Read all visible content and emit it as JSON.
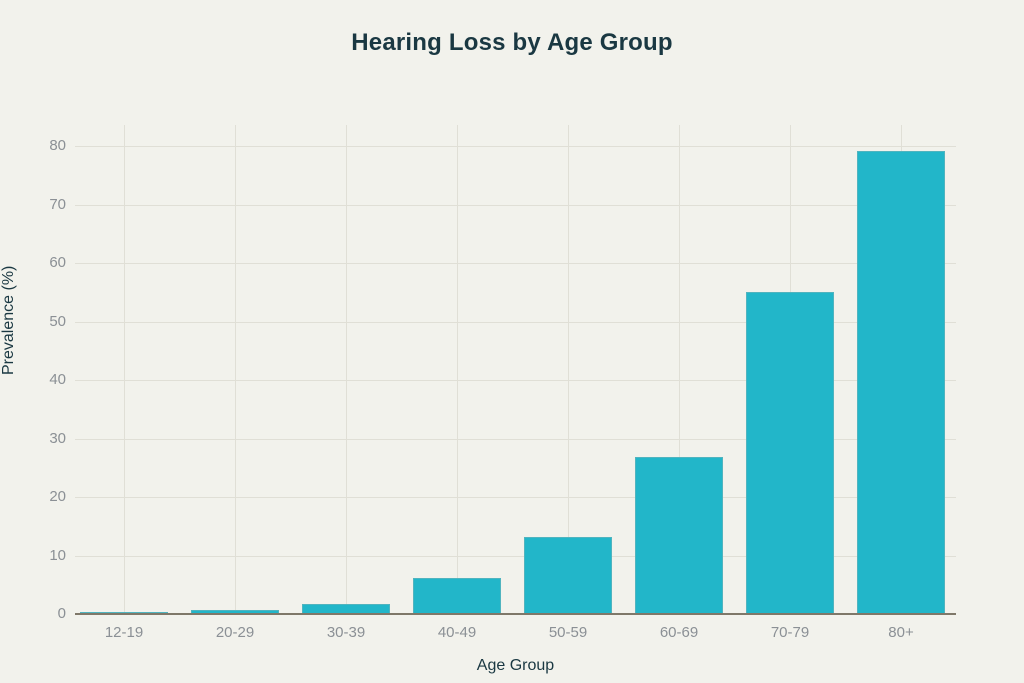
{
  "figure": {
    "background_color": "#f2f2ec",
    "heading_color": "#1a3842",
    "tick_label_color": "#8b9095",
    "gridline_color": "#e0dfd6",
    "axis_line_color": "#7f7869"
  },
  "chart_data": {
    "type": "bar",
    "title": "Hearing Loss by Age Group",
    "xlabel": "Age Group",
    "ylabel": "Prevalence (%)",
    "categories": [
      "12-19",
      "20-29",
      "30-39",
      "40-49",
      "50-59",
      "60-69",
      "70-79",
      "80+"
    ],
    "values": [
      0.3,
      0.7,
      1.7,
      6.2,
      13.2,
      26.8,
      55.1,
      79.1
    ],
    "y_ticks": [
      0,
      10,
      20,
      30,
      40,
      50,
      60,
      70,
      80
    ],
    "ylim": [
      0,
      83.6
    ],
    "bar_color": "#22b6c9",
    "grid": true,
    "legend": "none"
  }
}
